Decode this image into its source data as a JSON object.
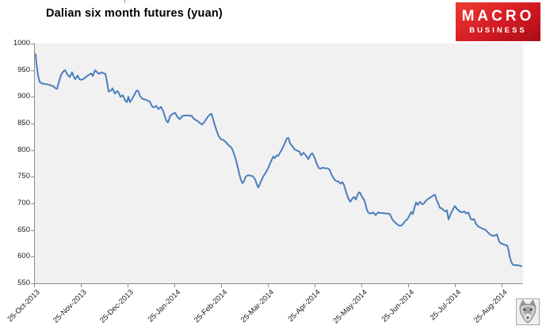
{
  "page": {
    "title_text": "Dalian six month futures (yuan)"
  },
  "logo": {
    "line1": "MACRO",
    "line2": "BUSINESS",
    "bg_gradient": [
      "#ee3c30",
      "#a90d15"
    ],
    "text_color": "#ffffff"
  },
  "watermark": {
    "name": "wolf-sketch-stamp"
  },
  "chart_data": {
    "type": "line",
    "title": "Dalian six month futures (yuan)",
    "xlabel": "",
    "ylabel": "",
    "grid": false,
    "legend": false,
    "ylim": [
      550,
      1000
    ],
    "y_ticks": [
      1000,
      950,
      900,
      850,
      800,
      750,
      700,
      650,
      600,
      550
    ],
    "x_labels": [
      "25-Oct-2013",
      "25-Nov-2013",
      "25-Dec-2013",
      "25-Jan-2014",
      "25-Feb-2014",
      "25-Mar-2014",
      "25-Apr-2014",
      "25-May-2014",
      "25-Jun-2014",
      "25-Jul-2014",
      "25-Aug-2014"
    ],
    "x_axis_note": "daily series; x stored as screenshot px: 25-Oct-2013 tick at 43px, 59px per month, data runs past 25-Aug-2014 to plot right edge at 659px (~mid-Sep-2014)",
    "line_color": "#4a7ebb",
    "plot_bg": "#f1f1f2",
    "axis_color": "#8c8c8c",
    "label_color": "#1a1a1a",
    "series": [
      {
        "name": "Dalian six month futures (yuan)",
        "points": [
          [
            45,
            980
          ],
          [
            46,
            962
          ],
          [
            48,
            940
          ],
          [
            50,
            928
          ],
          [
            53,
            925
          ],
          [
            57,
            924
          ],
          [
            61,
            923
          ],
          [
            65,
            921
          ],
          [
            68,
            919
          ],
          [
            70,
            916
          ],
          [
            72,
            915
          ],
          [
            74,
            926
          ],
          [
            77,
            941
          ],
          [
            80,
            948
          ],
          [
            82,
            950
          ],
          [
            85,
            942
          ],
          [
            88,
            937
          ],
          [
            91,
            946
          ],
          [
            93,
            938
          ],
          [
            95,
            933
          ],
          [
            98,
            940
          ],
          [
            100,
            933
          ],
          [
            103,
            932
          ],
          [
            106,
            934
          ],
          [
            109,
            938
          ],
          [
            112,
            941
          ],
          [
            115,
            944
          ],
          [
            117,
            939
          ],
          [
            120,
            950
          ],
          [
            122,
            947
          ],
          [
            125,
            943
          ],
          [
            128,
            946
          ],
          [
            131,
            944
          ],
          [
            133,
            943
          ],
          [
            135,
            928
          ],
          [
            137,
            910
          ],
          [
            140,
            912
          ],
          [
            142,
            916
          ],
          [
            145,
            906
          ],
          [
            148,
            911
          ],
          [
            150,
            907
          ],
          [
            152,
            900
          ],
          [
            155,
            903
          ],
          [
            158,
            893
          ],
          [
            160,
            890
          ],
          [
            162,
            900
          ],
          [
            164,
            890
          ],
          [
            167,
            897
          ],
          [
            170,
            905
          ],
          [
            172,
            911
          ],
          [
            174,
            912
          ],
          [
            177,
            901
          ],
          [
            180,
            896
          ],
          [
            183,
            895
          ],
          [
            186,
            893
          ],
          [
            189,
            891
          ],
          [
            192,
            882
          ],
          [
            194,
            880
          ],
          [
            197,
            883
          ],
          [
            200,
            877
          ],
          [
            203,
            881
          ],
          [
            206,
            873
          ],
          [
            208,
            863
          ],
          [
            210,
            855
          ],
          [
            212,
            852
          ],
          [
            215,
            865
          ],
          [
            218,
            868
          ],
          [
            221,
            870
          ],
          [
            224,
            862
          ],
          [
            227,
            858
          ],
          [
            230,
            864
          ],
          [
            234,
            865
          ],
          [
            238,
            865
          ],
          [
            242,
            864
          ],
          [
            245,
            858
          ],
          [
            249,
            855
          ],
          [
            252,
            851
          ],
          [
            255,
            848
          ],
          [
            258,
            853
          ],
          [
            262,
            862
          ],
          [
            265,
            867
          ],
          [
            267,
            868
          ],
          [
            270,
            852
          ],
          [
            273,
            838
          ],
          [
            276,
            826
          ],
          [
            279,
            820
          ],
          [
            282,
            819
          ],
          [
            285,
            815
          ],
          [
            288,
            810
          ],
          [
            290,
            807
          ],
          [
            292,
            805
          ],
          [
            294,
            798
          ],
          [
            296,
            790
          ],
          [
            298,
            780
          ],
          [
            300,
            768
          ],
          [
            302,
            755
          ],
          [
            304,
            744
          ],
          [
            306,
            738
          ],
          [
            308,
            742
          ],
          [
            310,
            750
          ],
          [
            313,
            753
          ],
          [
            316,
            752
          ],
          [
            319,
            751
          ],
          [
            322,
            745
          ],
          [
            324,
            736
          ],
          [
            326,
            730
          ],
          [
            329,
            740
          ],
          [
            332,
            750
          ],
          [
            335,
            757
          ],
          [
            338,
            765
          ],
          [
            340,
            772
          ],
          [
            343,
            782
          ],
          [
            345,
            788
          ],
          [
            347,
            785
          ],
          [
            349,
            790
          ],
          [
            351,
            789
          ],
          [
            354,
            797
          ],
          [
            357,
            805
          ],
          [
            360,
            815
          ],
          [
            362,
            822
          ],
          [
            364,
            823
          ],
          [
            366,
            813
          ],
          [
            369,
            807
          ],
          [
            372,
            801
          ],
          [
            375,
            799
          ],
          [
            378,
            797
          ],
          [
            380,
            790
          ],
          [
            383,
            795
          ],
          [
            386,
            790
          ],
          [
            389,
            783
          ],
          [
            392,
            792
          ],
          [
            394,
            794
          ],
          [
            397,
            786
          ],
          [
            399,
            777
          ],
          [
            402,
            767
          ],
          [
            404,
            765
          ],
          [
            407,
            767
          ],
          [
            410,
            766
          ],
          [
            413,
            766
          ],
          [
            416,
            763
          ],
          [
            419,
            752
          ],
          [
            422,
            745
          ],
          [
            424,
            742
          ],
          [
            427,
            741
          ],
          [
            430,
            737
          ],
          [
            432,
            740
          ],
          [
            434,
            735
          ],
          [
            437,
            720
          ],
          [
            440,
            708
          ],
          [
            442,
            703
          ],
          [
            445,
            710
          ],
          [
            447,
            712
          ],
          [
            449,
            707
          ],
          [
            452,
            719
          ],
          [
            454,
            721
          ],
          [
            457,
            712
          ],
          [
            460,
            705
          ],
          [
            463,
            688
          ],
          [
            465,
            682
          ],
          [
            468,
            681
          ],
          [
            471,
            683
          ],
          [
            474,
            678
          ],
          [
            477,
            683
          ],
          [
            480,
            682
          ],
          [
            483,
            682
          ],
          [
            486,
            681
          ],
          [
            489,
            681
          ],
          [
            492,
            680
          ],
          [
            495,
            670
          ],
          [
            498,
            665
          ],
          [
            501,
            661
          ],
          [
            504,
            658
          ],
          [
            507,
            659
          ],
          [
            510,
            664
          ],
          [
            512,
            668
          ],
          [
            514,
            670
          ],
          [
            517,
            678
          ],
          [
            519,
            684
          ],
          [
            521,
            680
          ],
          [
            523,
            692
          ],
          [
            525,
            702
          ],
          [
            527,
            697
          ],
          [
            530,
            703
          ],
          [
            533,
            698
          ],
          [
            535,
            700
          ],
          [
            537,
            704
          ],
          [
            540,
            708
          ],
          [
            544,
            712
          ],
          [
            547,
            715
          ],
          [
            549,
            716
          ],
          [
            551,
            706
          ],
          [
            553,
            700
          ],
          [
            555,
            692
          ],
          [
            558,
            690
          ],
          [
            560,
            687
          ],
          [
            562,
            685
          ],
          [
            564,
            687
          ],
          [
            566,
            670
          ],
          [
            569,
            681
          ],
          [
            572,
            690
          ],
          [
            574,
            695
          ],
          [
            577,
            689
          ],
          [
            580,
            685
          ],
          [
            583,
            683
          ],
          [
            586,
            685
          ],
          [
            588,
            681
          ],
          [
            591,
            683
          ],
          [
            594,
            671
          ],
          [
            596,
            669
          ],
          [
            598,
            671
          ],
          [
            601,
            661
          ],
          [
            604,
            656
          ],
          [
            607,
            654
          ],
          [
            610,
            652
          ],
          [
            613,
            650
          ],
          [
            616,
            645
          ],
          [
            619,
            641
          ],
          [
            622,
            639
          ],
          [
            625,
            640
          ],
          [
            627,
            642
          ],
          [
            630,
            628
          ],
          [
            632,
            625
          ],
          [
            634,
            624
          ],
          [
            637,
            622
          ],
          [
            640,
            621
          ],
          [
            642,
            611
          ],
          [
            643,
            601
          ],
          [
            645,
            591
          ],
          [
            647,
            585
          ],
          [
            650,
            584
          ],
          [
            653,
            584
          ],
          [
            656,
            583
          ],
          [
            658,
            582
          ]
        ]
      }
    ]
  }
}
